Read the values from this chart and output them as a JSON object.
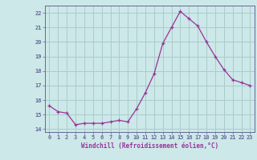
{
  "x": [
    0,
    1,
    2,
    3,
    4,
    5,
    6,
    7,
    8,
    9,
    10,
    11,
    12,
    13,
    14,
    15,
    16,
    17,
    18,
    19,
    20,
    21,
    22,
    23
  ],
  "y": [
    15.6,
    15.2,
    15.1,
    14.3,
    14.4,
    14.4,
    14.4,
    14.5,
    14.6,
    14.5,
    15.4,
    16.5,
    17.8,
    19.9,
    21.0,
    22.1,
    21.6,
    21.1,
    20.0,
    19.0,
    18.1,
    17.4,
    17.2,
    17.0
  ],
  "xlim": [
    -0.5,
    23.5
  ],
  "ylim": [
    13.8,
    22.5
  ],
  "yticks": [
    14,
    15,
    16,
    17,
    18,
    19,
    20,
    21,
    22
  ],
  "xticks": [
    0,
    1,
    2,
    3,
    4,
    5,
    6,
    7,
    8,
    9,
    10,
    11,
    12,
    13,
    14,
    15,
    16,
    17,
    18,
    19,
    20,
    21,
    22,
    23
  ],
  "xlabel": "Windchill (Refroidissement éolien,°C)",
  "line_color": "#993399",
  "marker": "+",
  "bg_color": "#cce8e8",
  "grid_color": "#aacccc",
  "axis_color": "#666699",
  "tick_color": "#993399",
  "xlabel_color": "#993399"
}
